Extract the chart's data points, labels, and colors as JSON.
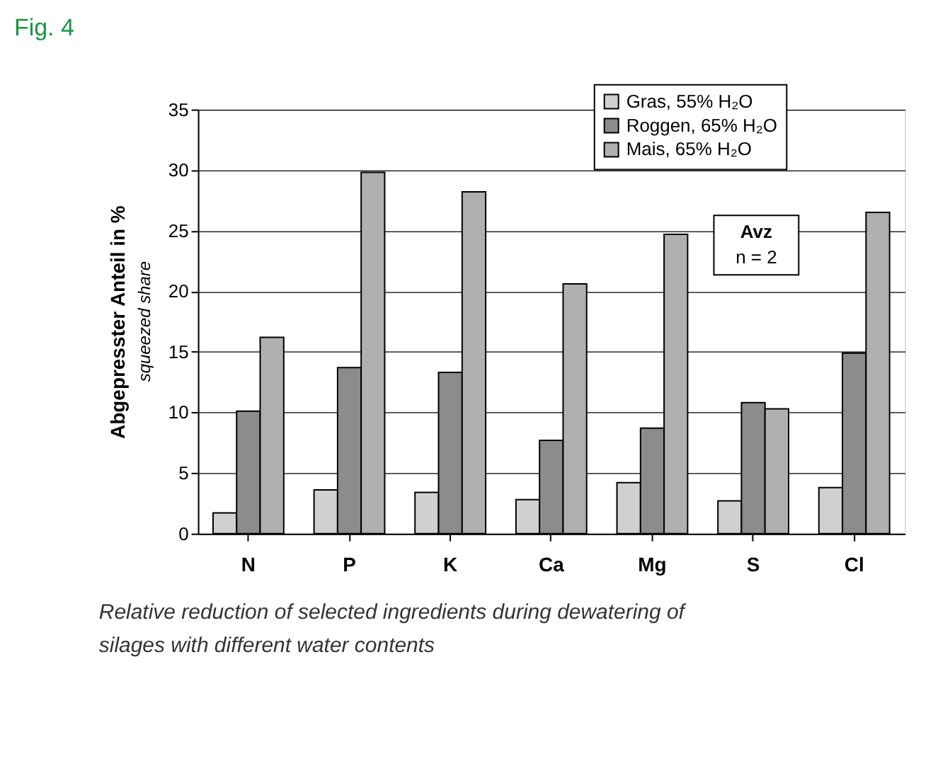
{
  "chart_data": {
    "type": "bar",
    "title": "Fig. 4",
    "ylabel": "Abgepresster Anteil in %",
    "categories": [
      "N",
      "P",
      "K",
      "Ca",
      "Mg",
      "S",
      "Cl"
    ],
    "series": [
      {
        "name": "Gras, 55% H₂O",
        "color": "#d0d0d0",
        "values": [
          1.7,
          3.6,
          3.4,
          2.8,
          4.2,
          2.7,
          3.8
        ]
      },
      {
        "name": "Roggen, 65% H₂O",
        "color": "#8c8c8c",
        "values": [
          10.1,
          13.7,
          13.3,
          7.7,
          8.7,
          10.8,
          14.9
        ]
      },
      {
        "name": "Mais, 65% H₂O",
        "color": "#b0b0b0",
        "values": [
          16.2,
          29.8,
          28.2,
          20.6,
          24.7,
          10.3,
          26.5
        ]
      }
    ],
    "ylim": [
      0,
      35
    ],
    "yticks": [
      0,
      5,
      10,
      15,
      20,
      25,
      30,
      35
    ],
    "grid": "y",
    "legend": "top right",
    "annotations": [
      "squeezed share",
      "Avz",
      "n = 2",
      "Relative reduction of selected ingredients during dewatering of",
      "silages with different water contents"
    ]
  }
}
